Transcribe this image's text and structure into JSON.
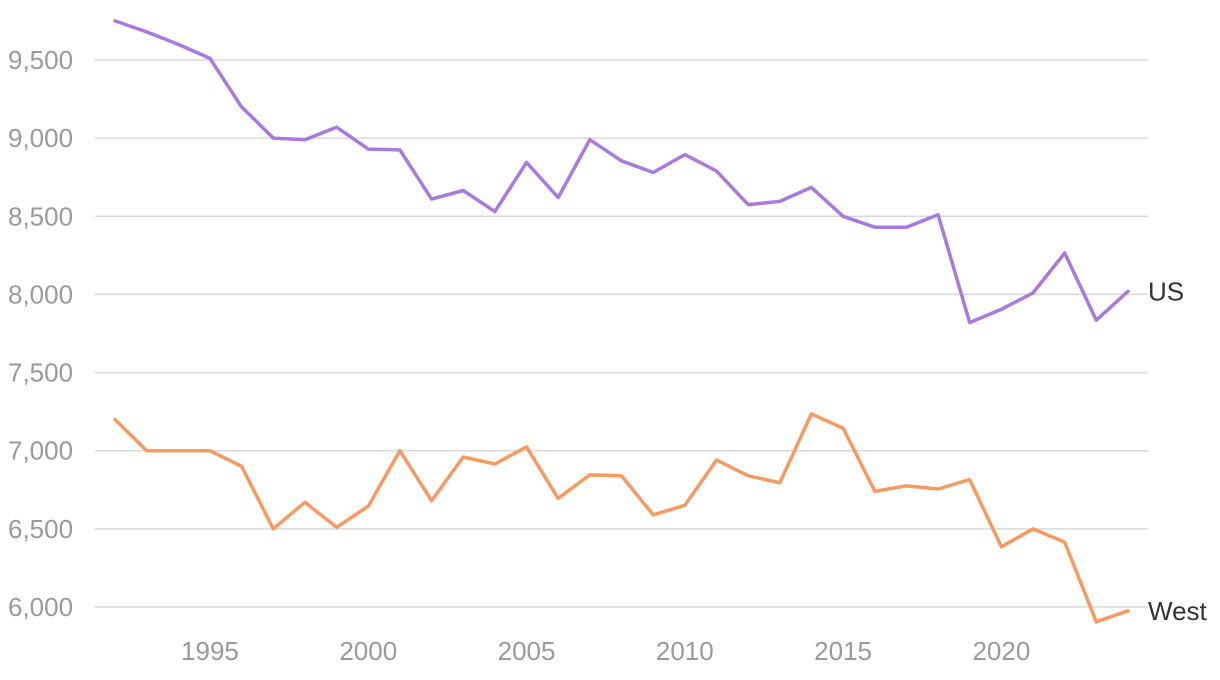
{
  "chart_data": {
    "type": "line",
    "title": "",
    "xlabel": "",
    "ylabel": "",
    "ylim": [
      5900,
      9800
    ],
    "xlim": [
      1992,
      2024
    ],
    "y_ticks": [
      9500,
      9000,
      8500,
      8000,
      7500,
      7000,
      6500,
      6000
    ],
    "y_tick_labels": [
      "9,500",
      "9,000",
      "8,500",
      "8,000",
      "7,500",
      "7,000",
      "6,500",
      "6,000"
    ],
    "x_ticks": [
      1995,
      2000,
      2005,
      2010,
      2015,
      2020
    ],
    "x_tick_labels": [
      "1995",
      "2000",
      "2005",
      "2010",
      "2015",
      "2020"
    ],
    "grid": true,
    "legend": "end-of-line labels",
    "x": [
      1992,
      1993,
      1994,
      1995,
      1996,
      1997,
      1998,
      1999,
      2000,
      2001,
      2002,
      2003,
      2004,
      2005,
      2006,
      2007,
      2008,
      2009,
      2010,
      2011,
      2012,
      2013,
      2014,
      2015,
      2016,
      2017,
      2018,
      2019,
      2020,
      2021,
      2022,
      2023,
      2024
    ],
    "series": [
      {
        "name": "US",
        "color": "#a97ade",
        "values": [
          9750,
          9680,
          9600,
          9510,
          9200,
          9000,
          8990,
          9070,
          8930,
          8925,
          8610,
          8665,
          8530,
          8845,
          8620,
          8990,
          8855,
          8780,
          8895,
          8790,
          8575,
          8595,
          8685,
          8500,
          8430,
          8430,
          8510,
          7820,
          7905,
          8010,
          8265,
          7835,
          8020
        ]
      },
      {
        "name": "West",
        "color": "#f59a60",
        "values": [
          7200,
          7000,
          7000,
          7000,
          6900,
          6500,
          6670,
          6510,
          6645,
          7000,
          6680,
          6960,
          6915,
          7025,
          6695,
          6845,
          6840,
          6590,
          6650,
          6940,
          6840,
          6795,
          7235,
          7145,
          6740,
          6775,
          6755,
          6815,
          6385,
          6500,
          6415,
          5905,
          5975
        ]
      }
    ]
  }
}
